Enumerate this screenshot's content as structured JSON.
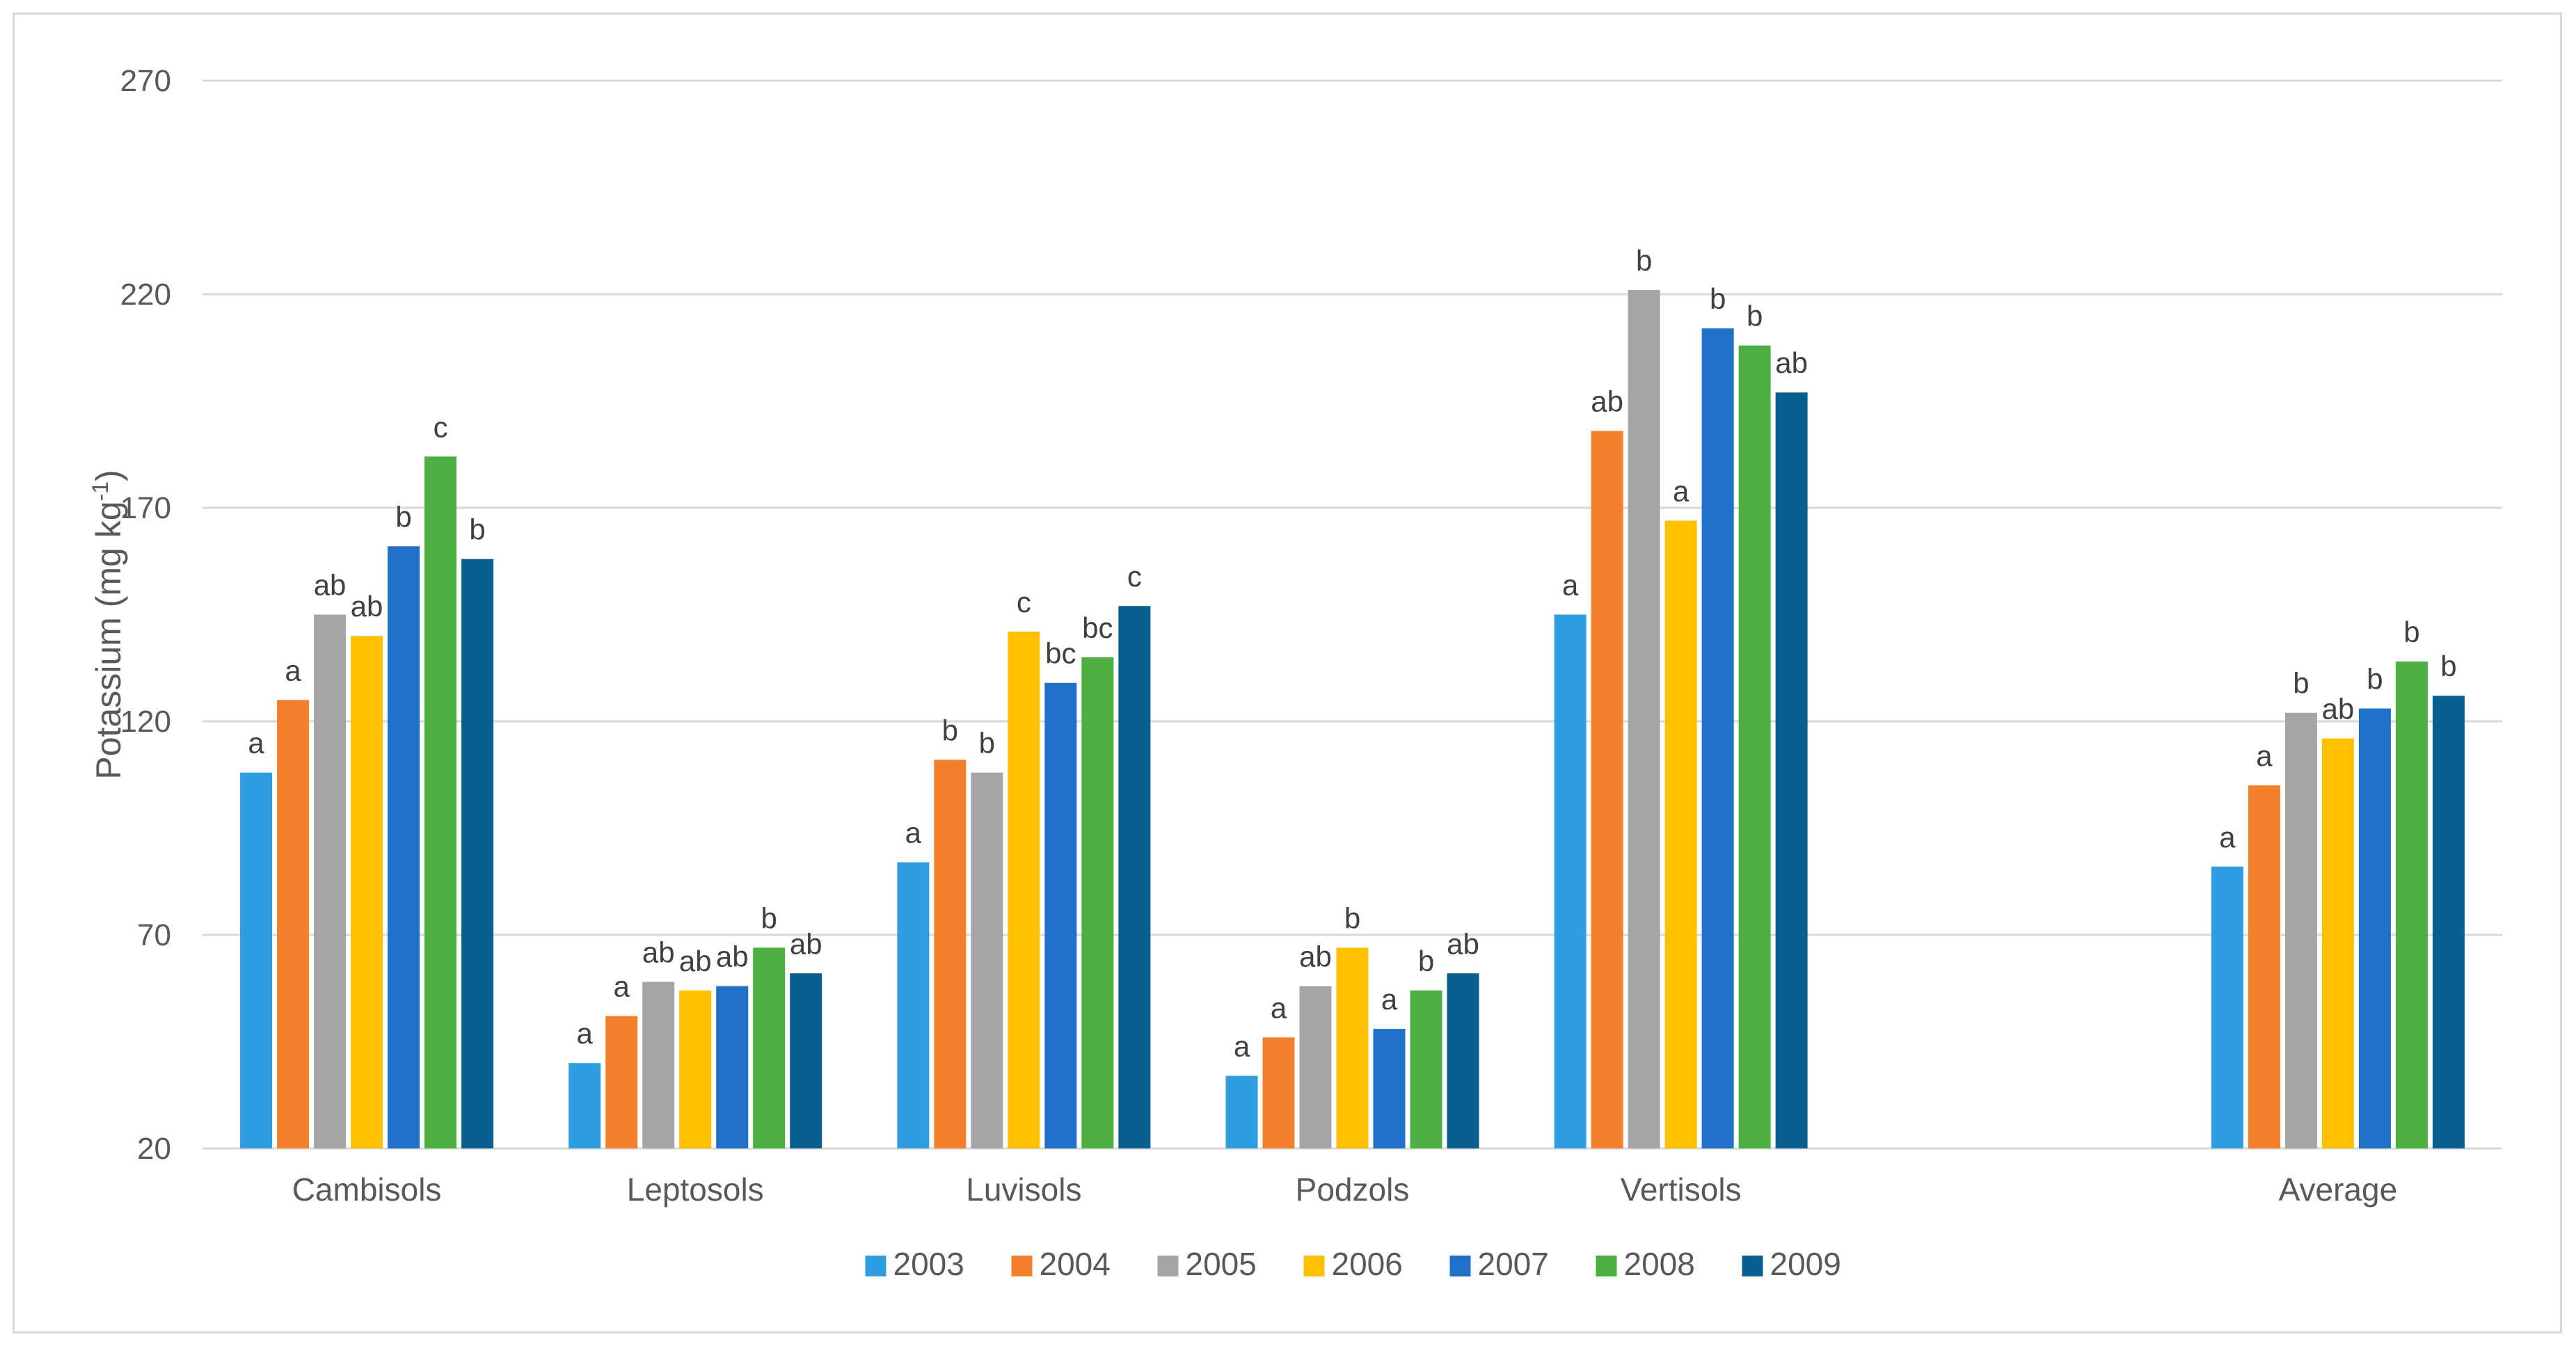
{
  "chart_data": {
    "type": "bar",
    "title": "",
    "xlabel": "",
    "ylabel": "Potassium (mg kg",
    "ylabel_superscript": "-1",
    "ylabel_suffix": ")",
    "ylim": [
      20,
      270
    ],
    "yticks": [
      20,
      70,
      120,
      170,
      220,
      270
    ],
    "grid": true,
    "legend_position": "bottom",
    "categories": [
      "Cambisols",
      "Leptosols",
      "Luvisols",
      "Podzols",
      "Vertisols",
      "Average"
    ],
    "category_slots": [
      0,
      1,
      2,
      3,
      4,
      6
    ],
    "series": [
      {
        "name": "2003",
        "color": "#2e9ee0",
        "values": [
          108,
          40,
          87,
          37,
          145,
          86
        ],
        "letters": [
          "a",
          "a",
          "a",
          "a",
          "a",
          "a"
        ]
      },
      {
        "name": "2004",
        "color": "#f47f2c",
        "values": [
          125,
          51,
          111,
          46,
          188,
          105
        ],
        "letters": [
          "a",
          "a",
          "b",
          "a",
          "ab",
          "a"
        ]
      },
      {
        "name": "2005",
        "color": "#a5a5a5",
        "values": [
          145,
          59,
          108,
          58,
          221,
          122
        ],
        "letters": [
          "ab",
          "ab",
          "b",
          "ab",
          "b",
          "b"
        ]
      },
      {
        "name": "2006",
        "color": "#ffc000",
        "values": [
          140,
          57,
          141,
          67,
          167,
          116
        ],
        "letters": [
          "ab",
          "ab",
          "c",
          "b",
          "a",
          "ab"
        ]
      },
      {
        "name": "2007",
        "color": "#1f70c9",
        "values": [
          161,
          58,
          129,
          48,
          212,
          123
        ],
        "letters": [
          "b",
          "ab",
          "bc",
          "a",
          "b",
          "b"
        ]
      },
      {
        "name": "2008",
        "color": "#4caf3f",
        "values": [
          182,
          67,
          135,
          57,
          208,
          134
        ],
        "letters": [
          "c",
          "b",
          "bc",
          "b",
          "b",
          "b"
        ]
      },
      {
        "name": "2009",
        "color": "#07608f",
        "values": [
          158,
          61,
          147,
          61,
          197,
          126
        ],
        "letters": [
          "b",
          "ab",
          "c",
          "ab",
          "ab",
          "b"
        ]
      }
    ]
  }
}
